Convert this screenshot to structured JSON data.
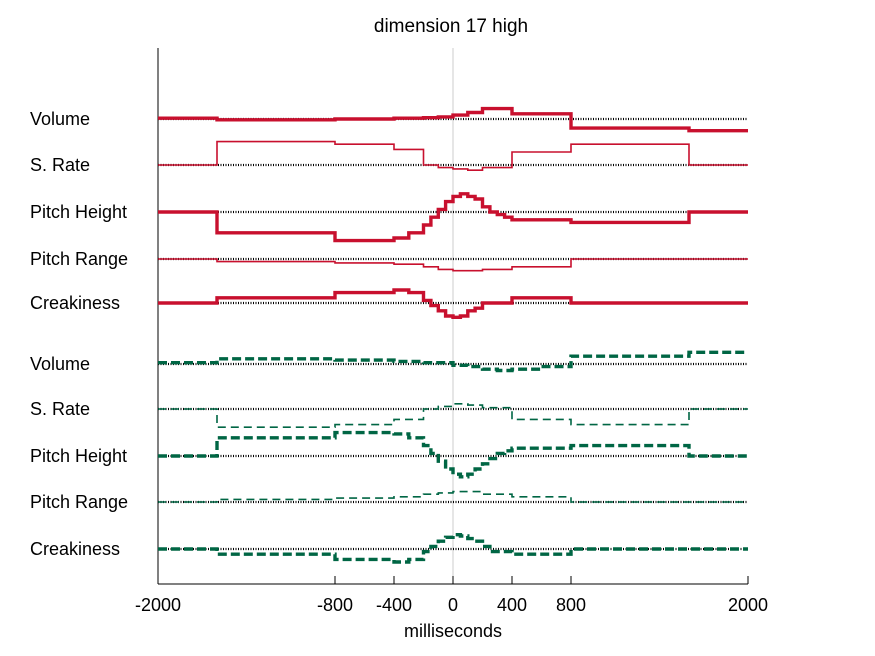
{
  "chart_data": {
    "type": "line",
    "title": "dimension 17 high",
    "xlabel": "milliseconds",
    "xlim": [
      -2000,
      2000
    ],
    "xticks": [
      -2000,
      -800,
      -400,
      0,
      400,
      800,
      2000
    ],
    "xtick_labels": [
      "-2000",
      "-800",
      "-400",
      "0",
      "400",
      "800",
      "2000"
    ],
    "grid": false,
    "legend": "none",
    "colors": {
      "red": "#c8102e",
      "green": "#006644",
      "zero_line": "#cccccc",
      "baseline": "#000000"
    },
    "series": [
      {
        "label": "Volume",
        "color": "red",
        "style": "solid",
        "weight": "thick",
        "steps": [
          [
            -2000,
            -1600,
            0.3
          ],
          [
            -1600,
            -800,
            -0.3
          ],
          [
            -800,
            -400,
            0
          ],
          [
            -400,
            -200,
            0.3
          ],
          [
            -200,
            -100,
            0.5
          ],
          [
            -100,
            0,
            0.8
          ],
          [
            0,
            100,
            1.5
          ],
          [
            100,
            200,
            2.5
          ],
          [
            200,
            400,
            4
          ],
          [
            400,
            800,
            2
          ],
          [
            800,
            1600,
            -3.5
          ],
          [
            1600,
            2000,
            -4.5
          ]
        ]
      },
      {
        "label": "S. Rate",
        "color": "red",
        "style": "solid",
        "weight": "thin",
        "steps": [
          [
            -2000,
            -1600,
            0
          ],
          [
            -1600,
            -800,
            9
          ],
          [
            -800,
            -400,
            8
          ],
          [
            -400,
            -200,
            6
          ],
          [
            -200,
            -100,
            0
          ],
          [
            -100,
            0,
            -1
          ],
          [
            0,
            100,
            -1.5
          ],
          [
            100,
            200,
            -2
          ],
          [
            200,
            400,
            -1
          ],
          [
            400,
            800,
            5
          ],
          [
            800,
            1600,
            8
          ],
          [
            1600,
            2000,
            0
          ]
        ]
      },
      {
        "label": "Pitch Height",
        "color": "red",
        "style": "solid",
        "weight": "thick",
        "steps": [
          [
            -2000,
            -1600,
            0
          ],
          [
            -1600,
            -800,
            -8
          ],
          [
            -800,
            -400,
            -11
          ],
          [
            -400,
            -300,
            -10
          ],
          [
            -300,
            -200,
            -8
          ],
          [
            -200,
            -150,
            -5
          ],
          [
            -150,
            -100,
            -2
          ],
          [
            -100,
            -50,
            1
          ],
          [
            -50,
            0,
            4
          ],
          [
            0,
            50,
            6
          ],
          [
            50,
            100,
            7
          ],
          [
            100,
            150,
            6
          ],
          [
            150,
            200,
            5
          ],
          [
            200,
            250,
            2
          ],
          [
            250,
            300,
            0
          ],
          [
            300,
            350,
            -1
          ],
          [
            350,
            400,
            -2
          ],
          [
            400,
            800,
            -3
          ],
          [
            800,
            1600,
            -4
          ],
          [
            1600,
            2000,
            0
          ]
        ]
      },
      {
        "label": "Pitch Range",
        "color": "red",
        "style": "solid",
        "weight": "thin",
        "steps": [
          [
            -2000,
            -1600,
            0
          ],
          [
            -1600,
            -800,
            -1
          ],
          [
            -800,
            -400,
            -1.5
          ],
          [
            -400,
            -200,
            -2
          ],
          [
            -200,
            -100,
            -3
          ],
          [
            -100,
            0,
            -4
          ],
          [
            0,
            200,
            -4.5
          ],
          [
            200,
            400,
            -4
          ],
          [
            400,
            800,
            -3
          ],
          [
            800,
            1600,
            0
          ],
          [
            1600,
            2000,
            0
          ]
        ]
      },
      {
        "label": "Creakiness",
        "color": "red",
        "style": "solid",
        "weight": "thick",
        "steps": [
          [
            -2000,
            -1600,
            0
          ],
          [
            -1600,
            -800,
            2
          ],
          [
            -800,
            -400,
            4
          ],
          [
            -400,
            -300,
            5
          ],
          [
            -300,
            -200,
            4
          ],
          [
            -200,
            -150,
            1
          ],
          [
            -150,
            -100,
            -1
          ],
          [
            -100,
            -50,
            -3
          ],
          [
            -50,
            0,
            -5
          ],
          [
            0,
            50,
            -5.5
          ],
          [
            50,
            100,
            -5
          ],
          [
            100,
            150,
            -3
          ],
          [
            150,
            200,
            -2
          ],
          [
            200,
            400,
            0
          ],
          [
            400,
            800,
            2
          ],
          [
            800,
            1600,
            0
          ],
          [
            1600,
            2000,
            0
          ]
        ]
      },
      {
        "label": "Volume",
        "color": "green",
        "style": "dashed",
        "weight": "thick",
        "steps": [
          [
            -2000,
            -1600,
            0.5
          ],
          [
            -1600,
            -800,
            2
          ],
          [
            -800,
            -400,
            1.5
          ],
          [
            -400,
            -200,
            1
          ],
          [
            -200,
            0,
            0.5
          ],
          [
            0,
            100,
            -0.5
          ],
          [
            100,
            200,
            -1
          ],
          [
            200,
            300,
            -2
          ],
          [
            300,
            400,
            -2.5
          ],
          [
            400,
            600,
            -2
          ],
          [
            600,
            800,
            -1
          ],
          [
            800,
            1600,
            3
          ],
          [
            1600,
            2000,
            4.5
          ]
        ]
      },
      {
        "label": "S. Rate",
        "color": "green",
        "style": "dashed",
        "weight": "thin",
        "steps": [
          [
            -2000,
            -1600,
            0
          ],
          [
            -1600,
            -800,
            -7
          ],
          [
            -800,
            -400,
            -6
          ],
          [
            -400,
            -200,
            -4
          ],
          [
            -200,
            -100,
            0
          ],
          [
            -100,
            0,
            1
          ],
          [
            0,
            100,
            2
          ],
          [
            100,
            200,
            1.5
          ],
          [
            200,
            400,
            0.5
          ],
          [
            400,
            800,
            -4
          ],
          [
            800,
            1600,
            -6
          ],
          [
            1600,
            2000,
            0
          ]
        ]
      },
      {
        "label": "Pitch Height",
        "color": "green",
        "style": "dashed",
        "weight": "thick",
        "steps": [
          [
            -2000,
            -1600,
            0
          ],
          [
            -1600,
            -800,
            7
          ],
          [
            -800,
            -400,
            9
          ],
          [
            -400,
            -300,
            8.5
          ],
          [
            -300,
            -200,
            7
          ],
          [
            -200,
            -150,
            4
          ],
          [
            -150,
            -100,
            1
          ],
          [
            -100,
            -50,
            -2
          ],
          [
            -50,
            0,
            -5
          ],
          [
            0,
            50,
            -7
          ],
          [
            50,
            100,
            -8
          ],
          [
            100,
            150,
            -7
          ],
          [
            150,
            200,
            -5
          ],
          [
            200,
            250,
            -3
          ],
          [
            250,
            300,
            -1
          ],
          [
            300,
            350,
            1
          ],
          [
            350,
            400,
            2
          ],
          [
            400,
            800,
            3
          ],
          [
            800,
            1600,
            4
          ],
          [
            1600,
            2000,
            0
          ]
        ]
      },
      {
        "label": "Pitch Range",
        "color": "green",
        "style": "dashed",
        "weight": "thin",
        "steps": [
          [
            -2000,
            -1600,
            0
          ],
          [
            -1600,
            -800,
            1
          ],
          [
            -800,
            -400,
            1.5
          ],
          [
            -400,
            -200,
            2
          ],
          [
            -200,
            -100,
            3
          ],
          [
            -100,
            0,
            3.5
          ],
          [
            0,
            200,
            4
          ],
          [
            200,
            400,
            3
          ],
          [
            400,
            800,
            2
          ],
          [
            800,
            1600,
            0
          ],
          [
            1600,
            2000,
            0
          ]
        ]
      },
      {
        "label": "Creakiness",
        "color": "green",
        "style": "dashed",
        "weight": "thick",
        "steps": [
          [
            -2000,
            -1600,
            0
          ],
          [
            -1600,
            -800,
            -2
          ],
          [
            -800,
            -400,
            -4
          ],
          [
            -400,
            -300,
            -5
          ],
          [
            -300,
            -200,
            -4
          ],
          [
            -200,
            -150,
            -1
          ],
          [
            -150,
            -100,
            1
          ],
          [
            -100,
            -50,
            3
          ],
          [
            -50,
            0,
            4.5
          ],
          [
            0,
            50,
            5.5
          ],
          [
            50,
            100,
            5
          ],
          [
            100,
            150,
            4
          ],
          [
            150,
            200,
            3
          ],
          [
            200,
            250,
            1
          ],
          [
            250,
            400,
            -1
          ],
          [
            400,
            800,
            -2
          ],
          [
            800,
            1600,
            0
          ],
          [
            1600,
            2000,
            0
          ]
        ]
      }
    ]
  }
}
